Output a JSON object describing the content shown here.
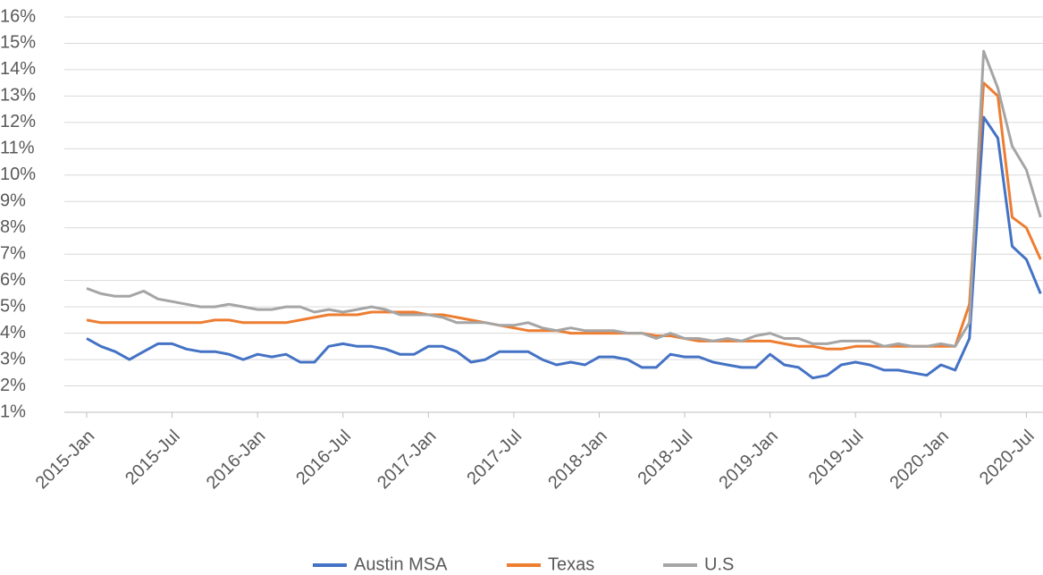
{
  "chart_data": {
    "type": "line",
    "categories": [
      "2015-Jan",
      null,
      null,
      null,
      null,
      null,
      "2015-Jul",
      null,
      null,
      null,
      null,
      null,
      "2016-Jan",
      null,
      null,
      null,
      null,
      null,
      "2016-Jul",
      null,
      null,
      null,
      null,
      null,
      "2017-Jan",
      null,
      null,
      null,
      null,
      null,
      "2017-Jul",
      null,
      null,
      null,
      null,
      null,
      "2018-Jan",
      null,
      null,
      null,
      null,
      null,
      "2018-Jul",
      null,
      null,
      null,
      null,
      null,
      "2019-Jan",
      null,
      null,
      null,
      null,
      null,
      "2019-Jul",
      null,
      null,
      null,
      null,
      null,
      "2020-Jan",
      null,
      null,
      null,
      null,
      null,
      "2020-Jul",
      null
    ],
    "series": [
      {
        "name": "Austin MSA",
        "color": "#4472c4",
        "values": [
          3.8,
          3.5,
          3.3,
          3.0,
          3.3,
          3.6,
          3.6,
          3.4,
          3.3,
          3.3,
          3.2,
          3.0,
          3.2,
          3.1,
          3.2,
          2.9,
          2.9,
          3.5,
          3.6,
          3.5,
          3.5,
          3.4,
          3.2,
          3.2,
          3.5,
          3.5,
          3.3,
          2.9,
          3.0,
          3.3,
          3.3,
          3.3,
          3.0,
          2.8,
          2.9,
          2.8,
          3.1,
          3.1,
          3.0,
          2.7,
          2.7,
          3.2,
          3.1,
          3.1,
          2.9,
          2.8,
          2.7,
          2.7,
          3.2,
          2.8,
          2.7,
          2.3,
          2.4,
          2.8,
          2.9,
          2.8,
          2.6,
          2.6,
          2.5,
          2.4,
          2.8,
          2.6,
          3.8,
          12.2,
          11.4,
          7.3,
          6.8,
          5.5
        ]
      },
      {
        "name": "Texas",
        "color": "#ed7d31",
        "values": [
          4.5,
          4.4,
          4.4,
          4.4,
          4.4,
          4.4,
          4.4,
          4.4,
          4.4,
          4.5,
          4.5,
          4.4,
          4.4,
          4.4,
          4.4,
          4.5,
          4.6,
          4.7,
          4.7,
          4.7,
          4.8,
          4.8,
          4.8,
          4.8,
          4.7,
          4.7,
          4.6,
          4.5,
          4.4,
          4.3,
          4.2,
          4.1,
          4.1,
          4.1,
          4.0,
          4.0,
          4.0,
          4.0,
          4.0,
          4.0,
          3.9,
          3.9,
          3.8,
          3.7,
          3.7,
          3.7,
          3.7,
          3.7,
          3.7,
          3.6,
          3.5,
          3.5,
          3.4,
          3.4,
          3.5,
          3.5,
          3.5,
          3.5,
          3.5,
          3.5,
          3.5,
          3.5,
          5.1,
          13.5,
          13.0,
          8.4,
          8.0,
          6.8
        ]
      },
      {
        "name": "U.S",
        "color": "#a5a5a5",
        "values": [
          5.7,
          5.5,
          5.4,
          5.4,
          5.6,
          5.3,
          5.2,
          5.1,
          5.0,
          5.0,
          5.1,
          5.0,
          4.9,
          4.9,
          5.0,
          5.0,
          4.8,
          4.9,
          4.8,
          4.9,
          5.0,
          4.9,
          4.7,
          4.7,
          4.7,
          4.6,
          4.4,
          4.4,
          4.4,
          4.3,
          4.3,
          4.4,
          4.2,
          4.1,
          4.2,
          4.1,
          4.1,
          4.1,
          4.0,
          4.0,
          3.8,
          4.0,
          3.8,
          3.8,
          3.7,
          3.8,
          3.7,
          3.9,
          4.0,
          3.8,
          3.8,
          3.6,
          3.6,
          3.7,
          3.7,
          3.7,
          3.5,
          3.6,
          3.5,
          3.5,
          3.6,
          3.5,
          4.4,
          14.7,
          13.3,
          11.1,
          10.2,
          8.4
        ]
      }
    ],
    "ylim": [
      1,
      16
    ],
    "yticks": [
      {
        "value": 1,
        "label": "1%"
      },
      {
        "value": 2,
        "label": "2%"
      },
      {
        "value": 3,
        "label": "3%"
      },
      {
        "value": 4,
        "label": "4%"
      },
      {
        "value": 5,
        "label": "5%"
      },
      {
        "value": 6,
        "label": "6%"
      },
      {
        "value": 7,
        "label": "7%"
      },
      {
        "value": 8,
        "label": "8%"
      },
      {
        "value": 9,
        "label": "9%"
      },
      {
        "value": 10,
        "label": "10%"
      },
      {
        "value": 11,
        "label": "11%"
      },
      {
        "value": 12,
        "label": "12%"
      },
      {
        "value": 13,
        "label": "13%"
      },
      {
        "value": 14,
        "label": "14%"
      },
      {
        "value": 15,
        "label": "15%"
      },
      {
        "value": 16,
        "label": "16%"
      }
    ],
    "grid": true,
    "legend": "bottom"
  }
}
